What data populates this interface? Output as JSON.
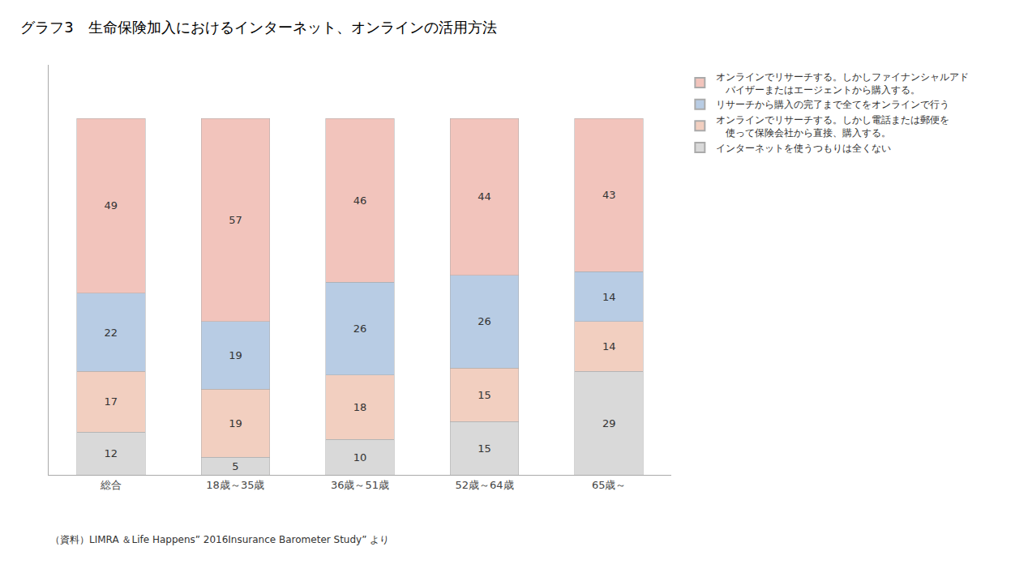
{
  "chart_data": {
    "type": "bar",
    "stacked": true,
    "title": "グラフ3　生命保険加入におけるインターネット、オンラインの活用方法",
    "categories": [
      "総合",
      "18歳～35歳",
      "36歳～51歳",
      "52歳～64歳",
      "65歳～"
    ],
    "series": [
      {
        "name": "インターネットを使うつもりは全くない",
        "values": [
          12,
          5,
          10,
          15,
          29
        ],
        "color": "#d9d9d9"
      },
      {
        "name": "オンラインでリサーチする。しかし電話または郵便を\n　使って保険会社から直接、購入する。",
        "values": [
          17,
          19,
          18,
          15,
          14
        ],
        "color": "#f2cfc0"
      },
      {
        "name": "リサーチから購入の完了まで全てをオンラインで行う",
        "values": [
          22,
          19,
          26,
          26,
          14
        ],
        "color": "#b8cce4"
      },
      {
        "name": "オンラインでリサーチする。しかしファイナンシャルアド\n　バイザーまたはエージェントから購入する。",
        "values": [
          49,
          57,
          46,
          44,
          43
        ],
        "color": "#f2c4bc"
      }
    ],
    "annotations": [
      "（資料）LIMRA ＆Life Happens” 2016Insurance Barometer Study” より"
    ],
    "ylim": [
      0,
      115
    ],
    "yticks": [],
    "tick_labels": "x",
    "grid": false,
    "data_labels": true,
    "legend": "right"
  }
}
